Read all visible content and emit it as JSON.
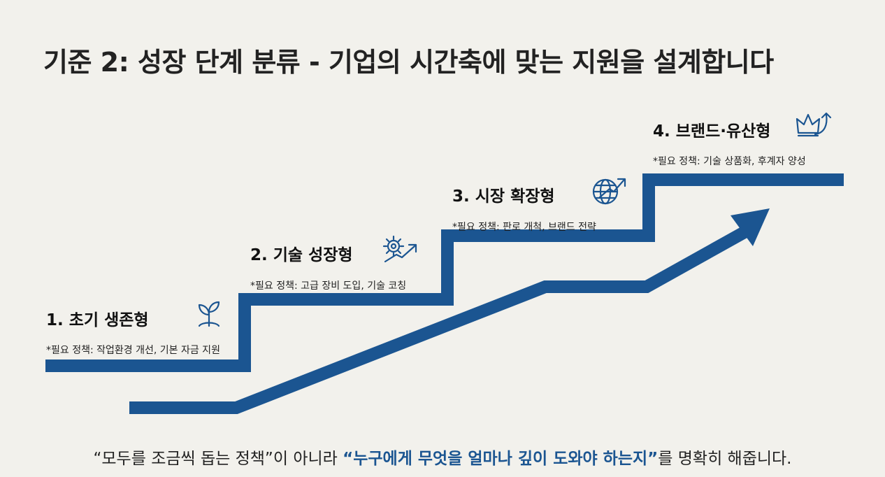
{
  "title": "기준 2: 성장 단계 분류 - 기업의 시간축에 맞는 지원을 설계합니다",
  "stages": [
    {
      "label": "1. 초기 생존형",
      "policy": "*필요 정책: 작업환경 개선, 기본 자금 지원",
      "icon": "sprout-icon"
    },
    {
      "label": "2. 기술 성장형",
      "policy": "*필요 정책: 고급 장비 도입, 기술 코칭",
      "icon": "gear-growth-icon"
    },
    {
      "label": "3. 시장 확장형",
      "policy": "*필요 정책: 판로 개척, 브랜드 전략",
      "icon": "globe-arrow-icon"
    },
    {
      "label": "4. 브랜드·유산형",
      "policy": "*필요 정책: 기술 상품화, 후계자 양성",
      "icon": "crown-arrow-icon"
    }
  ],
  "footer": {
    "part1": "“모두를 조금씩 돕는 정책”이 아니라 ",
    "highlight": "“누구에게 무엇을 얼마나 깊이 도와야 하는지”",
    "part2": "를 명확히 해줍니다."
  },
  "colors": {
    "accent": "#1b5591",
    "background": "#f2f1ec"
  }
}
